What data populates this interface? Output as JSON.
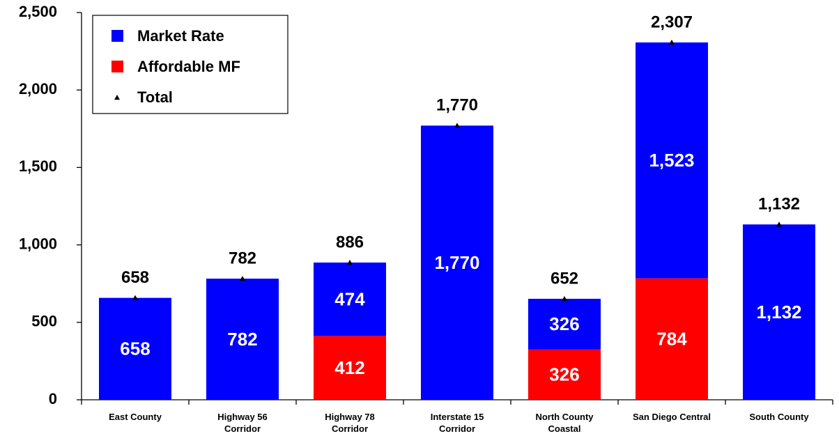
{
  "chart_data": {
    "type": "bar",
    "stacked": true,
    "categories": [
      "East County",
      "Highway 56\nCorridor",
      "Highway 78\nCorridor",
      "Interstate 15\nCorridor",
      "North County\nCoastal",
      "San Diego Central",
      "South County"
    ],
    "series": [
      {
        "name": "Market Rate",
        "type": "bar",
        "color": "#0000ff",
        "values": [
          658,
          782,
          474,
          1770,
          326,
          1523,
          1132
        ],
        "value_labels": [
          "658",
          "782",
          "474",
          "1,770",
          "326",
          "1,523",
          "1,132"
        ]
      },
      {
        "name": "Affordable MF",
        "type": "bar",
        "color": "#ff0000",
        "values": [
          null,
          null,
          412,
          null,
          326,
          784,
          null
        ],
        "value_labels": [
          null,
          null,
          "412",
          null,
          "326",
          "784",
          null
        ]
      },
      {
        "name": "Total",
        "type": "marker",
        "color": "#000000",
        "values": [
          658,
          782,
          886,
          1770,
          652,
          2307,
          1132
        ],
        "value_labels": [
          "658",
          "782",
          "886",
          "1,770",
          "652",
          "2,307",
          "1,132"
        ]
      }
    ],
    "ylim": [
      0,
      2500
    ],
    "yticks": [
      0,
      500,
      {
        "value": 1000,
        "label": "1,000"
      },
      {
        "value": 1500,
        "label": "1,500"
      },
      {
        "value": 2000,
        "label": "2,000"
      },
      {
        "value": 2500,
        "label": "2,500"
      }
    ],
    "grid": false,
    "legend": "top-left"
  }
}
